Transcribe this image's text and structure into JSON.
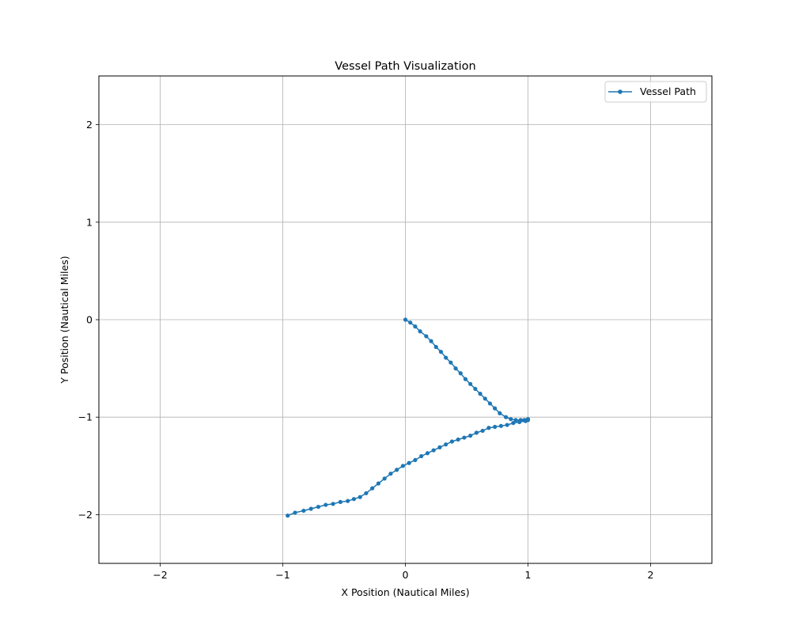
{
  "chart_data": {
    "type": "line",
    "title": "Vessel Path Visualization",
    "xlabel": "X Position (Nautical Miles)",
    "ylabel": "Y Position (Nautical Miles)",
    "xlim": [
      -2.5,
      2.5
    ],
    "ylim": [
      -2.5,
      2.5
    ],
    "xticks": [
      -2,
      -1,
      0,
      1,
      2
    ],
    "yticks": [
      -2,
      -1,
      0,
      1,
      2
    ],
    "xtick_labels": [
      "−2",
      "−1",
      "0",
      "1",
      "2"
    ],
    "ytick_labels": [
      "−2",
      "−1",
      "0",
      "1",
      "2"
    ],
    "grid": true,
    "legend_position": "top-right",
    "series": [
      {
        "name": "Vessel Path",
        "color": "#1f77b4",
        "marker": "circle",
        "x": [
          0.0,
          0.04,
          0.08,
          0.12,
          0.17,
          0.21,
          0.25,
          0.29,
          0.33,
          0.37,
          0.41,
          0.45,
          0.49,
          0.53,
          0.57,
          0.61,
          0.65,
          0.69,
          0.73,
          0.77,
          0.82,
          0.86,
          0.9,
          0.94,
          0.97,
          0.99,
          1.0,
          1.0,
          0.98,
          0.93,
          0.88,
          0.83,
          0.78,
          0.73,
          0.68,
          0.63,
          0.58,
          0.53,
          0.48,
          0.43,
          0.38,
          0.33,
          0.28,
          0.23,
          0.18,
          0.13,
          0.08,
          0.03,
          -0.02,
          -0.07,
          -0.12,
          -0.17,
          -0.22,
          -0.27,
          -0.32,
          -0.37,
          -0.42,
          -0.47,
          -0.53,
          -0.59,
          -0.65,
          -0.71,
          -0.77,
          -0.83,
          -0.9,
          -0.96
        ],
        "y": [
          0.0,
          -0.03,
          -0.07,
          -0.12,
          -0.17,
          -0.22,
          -0.28,
          -0.33,
          -0.39,
          -0.44,
          -0.5,
          -0.55,
          -0.61,
          -0.66,
          -0.71,
          -0.76,
          -0.81,
          -0.86,
          -0.91,
          -0.96,
          -1.0,
          -1.02,
          -1.03,
          -1.03,
          -1.03,
          -1.03,
          -1.03,
          -1.02,
          -1.04,
          -1.05,
          -1.06,
          -1.08,
          -1.09,
          -1.1,
          -1.11,
          -1.14,
          -1.16,
          -1.19,
          -1.21,
          -1.23,
          -1.25,
          -1.28,
          -1.31,
          -1.34,
          -1.37,
          -1.4,
          -1.44,
          -1.47,
          -1.5,
          -1.54,
          -1.58,
          -1.63,
          -1.68,
          -1.73,
          -1.78,
          -1.82,
          -1.84,
          -1.86,
          -1.87,
          -1.89,
          -1.9,
          -1.92,
          -1.94,
          -1.96,
          -1.98,
          -2.01
        ]
      }
    ]
  }
}
